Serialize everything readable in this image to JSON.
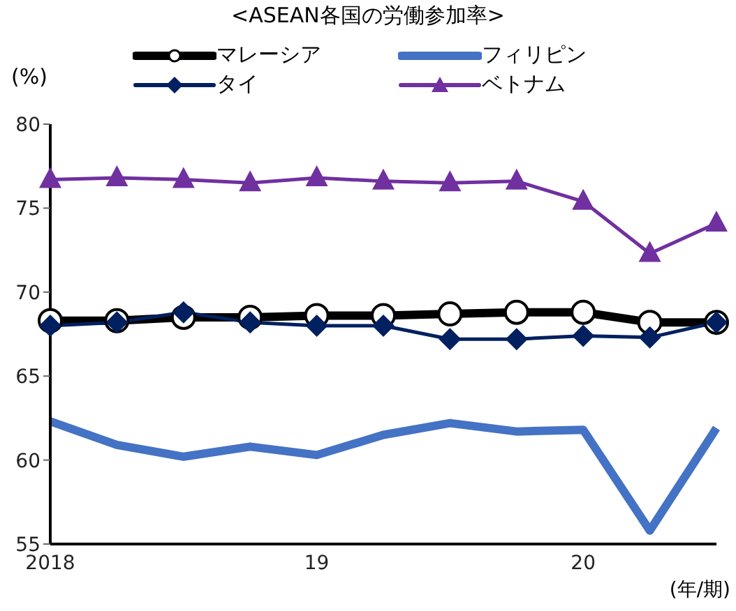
{
  "chart_data": {
    "type": "line",
    "title": "<ASEAN各国の労働参加率>",
    "ylabel": "(%)",
    "xlabel": "(年/期)",
    "categories": [
      "2018",
      null,
      null,
      null,
      "19",
      null,
      null,
      null,
      "20",
      null,
      null
    ],
    "series": [
      {
        "name": "マレーシア",
        "color": "#000000",
        "marker": "circle",
        "values": [
          68.3,
          68.3,
          68.5,
          68.5,
          68.6,
          68.6,
          68.7,
          68.8,
          68.8,
          68.2,
          68.2
        ]
      },
      {
        "name": "フィリピン",
        "color": "#4472c4",
        "marker": "none",
        "values": [
          62.3,
          60.9,
          60.2,
          60.8,
          60.3,
          61.5,
          62.2,
          61.7,
          61.8,
          55.8,
          61.9
        ]
      },
      {
        "name": "タイ",
        "color": "#002060",
        "marker": "diamond",
        "values": [
          68.0,
          68.2,
          68.8,
          68.2,
          68.0,
          68.0,
          67.2,
          67.2,
          67.4,
          67.3,
          68.2
        ]
      },
      {
        "name": "ベトナム",
        "color": "#7030a0",
        "marker": "triangle",
        "values": [
          76.7,
          76.8,
          76.7,
          76.5,
          76.8,
          76.6,
          76.5,
          76.6,
          75.4,
          72.3,
          74.1
        ]
      }
    ],
    "ylim": [
      55,
      80
    ],
    "yticks": [
      55,
      60,
      65,
      70,
      75,
      80
    ],
    "grid": false,
    "legend": "top"
  }
}
